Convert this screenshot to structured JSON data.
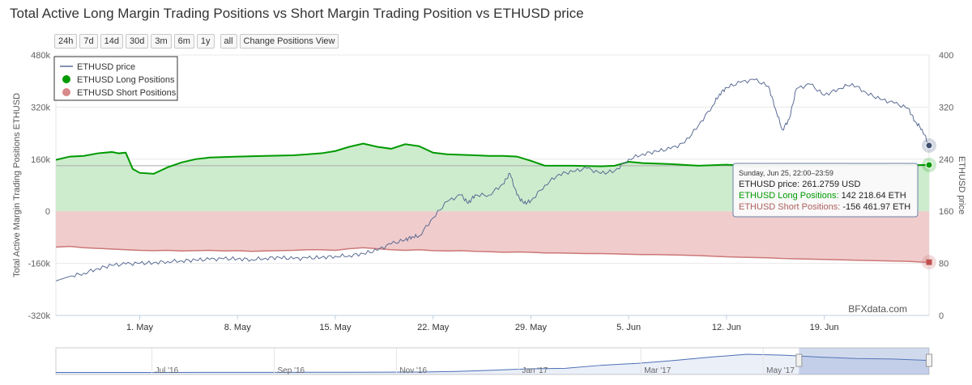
{
  "title": "Total Active Long Margin Trading Positions vs Short Margin Trading Position vs ETHUSD price",
  "range_buttons": [
    "24h",
    "7d",
    "14d",
    "30d",
    "3m",
    "6m",
    "1y",
    "all"
  ],
  "change_view_label": "Change Positions View",
  "watermark": "BFXdata.com",
  "colors": {
    "price": "#5a6c94",
    "long_line": "#009900",
    "long_fill": "#cdeccd",
    "short_line": "#cc7777",
    "short_fill": "#f1cccc"
  },
  "chart_data": {
    "type": "line",
    "x_unit": "days since Apr 25, 2017",
    "x_range": [
      0,
      62.5
    ],
    "x_ticks": [
      {
        "x": 6,
        "label": "1. May"
      },
      {
        "x": 13,
        "label": "8. May"
      },
      {
        "x": 20,
        "label": "15. May"
      },
      {
        "x": 27,
        "label": "22. May"
      },
      {
        "x": 34,
        "label": "29. May"
      },
      {
        "x": 41,
        "label": "5. Jun"
      },
      {
        "x": 48,
        "label": "12. Jun"
      },
      {
        "x": 55,
        "label": "19. Jun"
      }
    ],
    "y_left": {
      "label": "Total Active Margin Trading Positions ETHUSD",
      "range": [
        -320000,
        480000
      ],
      "ticks": [
        {
          "v": 480000,
          "label": "480k"
        },
        {
          "v": 320000,
          "label": "320k"
        },
        {
          "v": 160000,
          "label": "160k"
        },
        {
          "v": 0,
          "label": "0"
        },
        {
          "v": -160000,
          "label": "-160k"
        },
        {
          "v": -320000,
          "label": "-320k"
        }
      ]
    },
    "y_right": {
      "label": "ETHUSD price",
      "range": [
        0,
        400
      ],
      "ticks": [
        {
          "v": 400,
          "label": "400"
        },
        {
          "v": 320,
          "label": "320"
        },
        {
          "v": 240,
          "label": "240"
        },
        {
          "v": 160,
          "label": "160"
        },
        {
          "v": 80,
          "label": "80"
        },
        {
          "v": 0,
          "label": "0"
        }
      ]
    },
    "legend_position": "top-left",
    "series": [
      {
        "name": "ETHUSD price",
        "axis": "right",
        "style": "line",
        "points": [
          [
            0,
            53
          ],
          [
            1,
            60
          ],
          [
            2,
            65
          ],
          [
            3,
            72
          ],
          [
            4,
            77
          ],
          [
            5,
            79
          ],
          [
            6,
            80
          ],
          [
            7,
            81
          ],
          [
            8,
            83
          ],
          [
            9,
            84
          ],
          [
            10,
            85
          ],
          [
            11,
            86
          ],
          [
            12,
            87
          ],
          [
            13,
            87
          ],
          [
            14,
            86
          ],
          [
            15,
            88
          ],
          [
            16,
            89
          ],
          [
            17,
            87
          ],
          [
            18,
            88
          ],
          [
            19,
            89
          ],
          [
            20,
            91
          ],
          [
            21,
            92
          ],
          [
            22,
            95
          ],
          [
            23,
            100
          ],
          [
            24,
            110
          ],
          [
            25,
            116
          ],
          [
            25.5,
            121
          ],
          [
            26,
            122
          ],
          [
            27,
            150
          ],
          [
            28,
            175
          ],
          [
            29,
            185
          ],
          [
            29.5,
            172
          ],
          [
            30,
            185
          ],
          [
            31,
            185
          ],
          [
            32,
            202
          ],
          [
            32.5,
            218
          ],
          [
            33,
            185
          ],
          [
            33.5,
            172
          ],
          [
            34,
            176
          ],
          [
            35,
            200
          ],
          [
            36,
            217
          ],
          [
            37,
            221
          ],
          [
            38,
            226
          ],
          [
            39,
            218
          ],
          [
            40,
            222
          ],
          [
            41,
            240
          ],
          [
            42,
            248
          ],
          [
            43,
            252
          ],
          [
            44,
            256
          ],
          [
            45,
            265
          ],
          [
            46,
            292
          ],
          [
            47,
            322
          ],
          [
            47.5,
            340
          ],
          [
            48,
            350
          ],
          [
            49,
            358
          ],
          [
            50,
            362
          ],
          [
            51,
            352
          ],
          [
            51.5,
            318
          ],
          [
            52,
            285
          ],
          [
            52.5,
            302
          ],
          [
            53,
            348
          ],
          [
            54,
            355
          ],
          [
            55,
            338
          ],
          [
            56,
            348
          ],
          [
            57,
            356
          ],
          [
            58,
            342
          ],
          [
            59,
            332
          ],
          [
            60,
            326
          ],
          [
            61,
            318
          ],
          [
            61.5,
            298
          ],
          [
            62,
            286
          ],
          [
            62.5,
            261
          ]
        ]
      },
      {
        "name": "ETHUSD Long Positions",
        "axis": "left",
        "style": "area",
        "points": [
          [
            0,
            158000
          ],
          [
            1,
            168000
          ],
          [
            2,
            170000
          ],
          [
            3,
            178000
          ],
          [
            4,
            182000
          ],
          [
            4.5,
            178000
          ],
          [
            5,
            180000
          ],
          [
            5.5,
            130000
          ],
          [
            6,
            118000
          ],
          [
            7,
            115000
          ],
          [
            8,
            135000
          ],
          [
            9,
            150000
          ],
          [
            10,
            160000
          ],
          [
            11,
            165000
          ],
          [
            13,
            168000
          ],
          [
            15,
            170000
          ],
          [
            17,
            172000
          ],
          [
            19,
            178000
          ],
          [
            20,
            185000
          ],
          [
            21,
            198000
          ],
          [
            22,
            208000
          ],
          [
            23,
            198000
          ],
          [
            24,
            192000
          ],
          [
            25,
            206000
          ],
          [
            26,
            200000
          ],
          [
            27,
            180000
          ],
          [
            28,
            175000
          ],
          [
            30,
            172000
          ],
          [
            31,
            170000
          ],
          [
            32,
            170000
          ],
          [
            33,
            168000
          ],
          [
            34,
            155000
          ],
          [
            35,
            140000
          ],
          [
            37,
            140000
          ],
          [
            39,
            138000
          ],
          [
            40,
            140000
          ],
          [
            41,
            152000
          ],
          [
            42,
            148000
          ],
          [
            44,
            145000
          ],
          [
            46,
            140000
          ],
          [
            48,
            143000
          ],
          [
            50,
            138000
          ],
          [
            52,
            140000
          ],
          [
            54,
            141000
          ],
          [
            56,
            140000
          ],
          [
            58,
            143000
          ],
          [
            60,
            140000
          ],
          [
            62,
            142000
          ],
          [
            62.5,
            142219
          ]
        ]
      },
      {
        "name": "ETHUSD Short Positions",
        "axis": "left",
        "style": "area",
        "points": [
          [
            0,
            -110000
          ],
          [
            1,
            -108000
          ],
          [
            2,
            -112000
          ],
          [
            3,
            -114000
          ],
          [
            4,
            -116000
          ],
          [
            5,
            -118000
          ],
          [
            6,
            -120000
          ],
          [
            7,
            -121000
          ],
          [
            8,
            -120000
          ],
          [
            9,
            -122000
          ],
          [
            10,
            -121000
          ],
          [
            11,
            -120000
          ],
          [
            12,
            -122000
          ],
          [
            13,
            -121000
          ],
          [
            14,
            -123000
          ],
          [
            15,
            -122000
          ],
          [
            16,
            -121000
          ],
          [
            17,
            -120000
          ],
          [
            18,
            -118000
          ],
          [
            19,
            -118000
          ],
          [
            20,
            -120000
          ],
          [
            21,
            -115000
          ],
          [
            22,
            -112000
          ],
          [
            23,
            -115000
          ],
          [
            24,
            -118000
          ],
          [
            25,
            -120000
          ],
          [
            26,
            -118000
          ],
          [
            27,
            -121000
          ],
          [
            28,
            -122000
          ],
          [
            29,
            -121000
          ],
          [
            30,
            -123000
          ],
          [
            31,
            -124000
          ],
          [
            32,
            -126000
          ],
          [
            33,
            -125000
          ],
          [
            34,
            -126000
          ],
          [
            35,
            -128000
          ],
          [
            36,
            -128000
          ],
          [
            37,
            -129000
          ],
          [
            38,
            -130000
          ],
          [
            39,
            -130000
          ],
          [
            40,
            -131000
          ],
          [
            41,
            -132000
          ],
          [
            42,
            -133000
          ],
          [
            43,
            -133000
          ],
          [
            44,
            -134000
          ],
          [
            45,
            -135000
          ],
          [
            46,
            -136000
          ],
          [
            47,
            -138000
          ],
          [
            48,
            -140000
          ],
          [
            49,
            -141000
          ],
          [
            50,
            -142000
          ],
          [
            51,
            -143000
          ],
          [
            52,
            -145000
          ],
          [
            53,
            -146000
          ],
          [
            54,
            -147000
          ],
          [
            55,
            -148000
          ],
          [
            56,
            -149000
          ],
          [
            57,
            -150000
          ],
          [
            58,
            -151000
          ],
          [
            59,
            -152000
          ],
          [
            60,
            -153000
          ],
          [
            61,
            -154000
          ],
          [
            62,
            -156000
          ],
          [
            62.5,
            -156462
          ]
        ]
      }
    ],
    "reference_line": {
      "value": 140000,
      "axis": "left"
    },
    "tooltip": {
      "date": "Sunday, Jun 25, 22:00–23:59",
      "rows": [
        {
          "name": "ETHUSD price",
          "value": "261.2759 USD"
        },
        {
          "name": "ETHUSD Long Positions",
          "value": "142 218.64 ETH"
        },
        {
          "name": "ETHUSD Short Positions",
          "value": "-156 461.97 ETH"
        }
      ]
    },
    "navigator": {
      "labels": [
        "Jul '16",
        "Sep '16",
        "Nov '16",
        "Jan '17",
        "Mar '17",
        "May '17"
      ],
      "series": [
        8,
        8,
        9,
        9,
        10,
        11,
        11,
        12,
        13,
        15,
        18,
        30,
        55,
        85,
        95,
        160,
        200,
        260,
        330,
        390,
        370,
        330,
        300,
        290,
        261
      ]
    }
  }
}
